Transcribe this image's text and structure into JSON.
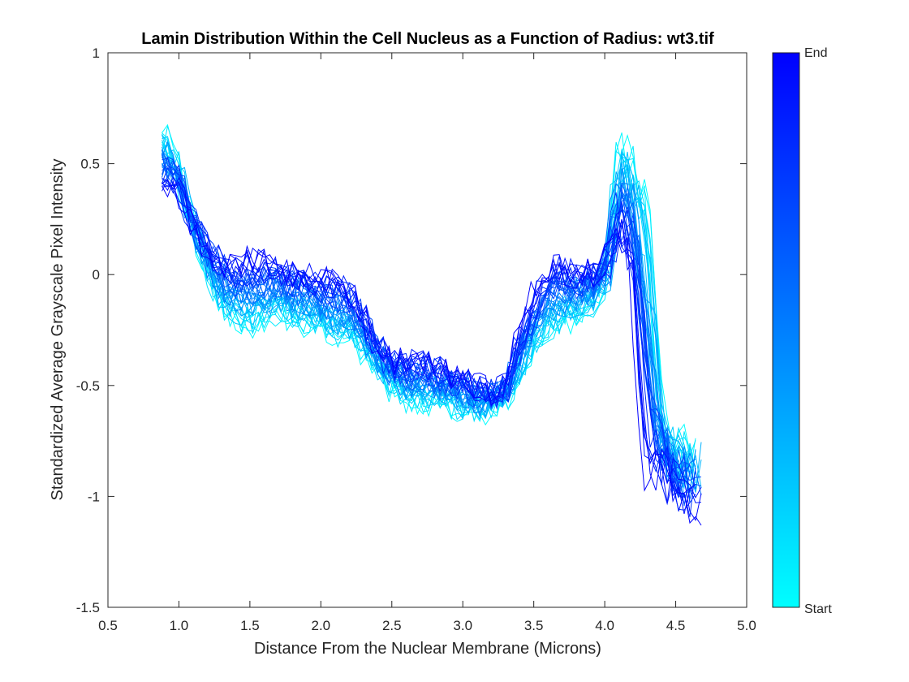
{
  "chart_data": {
    "type": "line",
    "title": "Lamin Distribution Within the Cell Nucleus as a Function of Radius: wt3.tif",
    "xlabel": "Distance From the Nuclear Membrane (Microns)",
    "ylabel": "Standardized Average Grayscale Pixel Intensity",
    "xlim": [
      0.5,
      5.0
    ],
    "ylim": [
      -1.5,
      1.0
    ],
    "xticks": [
      "0.5",
      "1.0",
      "1.5",
      "2.0",
      "2.5",
      "3.0",
      "3.5",
      "4.0",
      "4.5",
      "5.0"
    ],
    "yticks": [
      "1",
      "0.5",
      "0",
      "-0.5",
      "-1",
      "-1.5"
    ],
    "grid": false,
    "colorbar": {
      "top_label": "End",
      "bottom_label": "Start",
      "start_color": "#00ffff",
      "end_color": "#0000ff"
    },
    "series_count": 40,
    "profile": {
      "x": [
        0.9,
        1.0,
        1.1,
        1.2,
        1.3,
        1.4,
        1.5,
        1.6,
        1.7,
        1.8,
        1.9,
        2.0,
        2.1,
        2.2,
        2.3,
        2.4,
        2.5,
        2.6,
        2.7,
        2.8,
        2.9,
        3.0,
        3.1,
        3.2,
        3.3,
        3.4,
        3.5,
        3.6,
        3.7,
        3.8,
        3.9,
        4.0,
        4.1,
        4.2,
        4.3,
        4.35,
        4.4,
        4.5,
        4.55
      ],
      "start_values": [
        0.62,
        0.48,
        0.22,
        0.02,
        -0.14,
        -0.22,
        -0.24,
        -0.2,
        -0.18,
        -0.2,
        -0.22,
        -0.25,
        -0.28,
        -0.3,
        -0.36,
        -0.42,
        -0.52,
        -0.56,
        -0.58,
        -0.58,
        -0.6,
        -0.62,
        -0.62,
        -0.6,
        -0.55,
        -0.45,
        -0.34,
        -0.26,
        -0.22,
        -0.18,
        -0.15,
        -0.05,
        0.55,
        0.5,
        0.35,
        -0.1,
        -0.65,
        -0.78,
        -0.8
      ],
      "end_values": [
        0.42,
        0.4,
        0.22,
        0.12,
        0.06,
        0.04,
        0.08,
        0.06,
        0.04,
        0.02,
        0.0,
        -0.02,
        -0.02,
        -0.05,
        -0.18,
        -0.3,
        -0.38,
        -0.4,
        -0.38,
        -0.4,
        -0.44,
        -0.46,
        -0.5,
        -0.52,
        -0.5,
        -0.28,
        -0.1,
        0.02,
        0.04,
        0.02,
        0.0,
        0.05,
        0.18,
        0.05,
        -0.9,
        -0.92,
        -0.9,
        -0.95,
        -1.02
      ]
    },
    "noise": 0.07
  }
}
